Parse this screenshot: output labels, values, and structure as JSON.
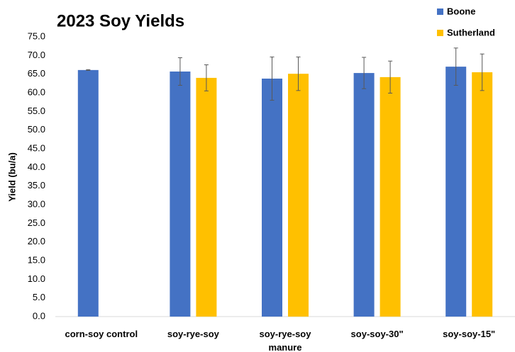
{
  "chart_data": {
    "type": "bar",
    "title": "2023 Soy Yields",
    "y_label": "Yield (bu/a)",
    "categories": [
      "corn-soy control",
      "soy-rye-soy",
      "soy-rye-soy manure",
      "soy-soy-30\"",
      "soy-soy-15\""
    ],
    "series": [
      {
        "name": "Boone",
        "color": "#4472c4",
        "values": [
          66.1,
          65.7,
          63.8,
          65.3,
          67.0
        ],
        "errors": [
          0.1,
          3.7,
          5.8,
          4.2,
          5.0
        ]
      },
      {
        "name": "Sutherland",
        "color": "#ffc000",
        "values": [
          null,
          64.0,
          65.1,
          64.2,
          65.5
        ],
        "errors": [
          null,
          3.5,
          4.5,
          4.3,
          4.9
        ]
      }
    ],
    "ylim": [
      0,
      75
    ],
    "yticks": [
      {
        "value": 0,
        "label": "0.0"
      },
      {
        "value": 5,
        "label": "5.0"
      },
      {
        "value": 10,
        "label": "10.0"
      },
      {
        "value": 15,
        "label": "15.0"
      },
      {
        "value": 20,
        "label": "20.0"
      },
      {
        "value": 25,
        "label": "25.0"
      },
      {
        "value": 30,
        "label": "30.0"
      },
      {
        "value": 35,
        "label": "35.0"
      },
      {
        "value": 40,
        "label": "40.0"
      },
      {
        "value": 45,
        "label": "45.0"
      },
      {
        "value": 50,
        "label": "50.0"
      },
      {
        "value": 55,
        "label": "55.0"
      },
      {
        "value": 60,
        "label": "60.0"
      },
      {
        "value": 65,
        "label": "65.0"
      },
      {
        "value": 70,
        "label": "70.0"
      },
      {
        "value": 75,
        "label": "75.0"
      }
    ],
    "grid": false,
    "legend": "top-right"
  }
}
